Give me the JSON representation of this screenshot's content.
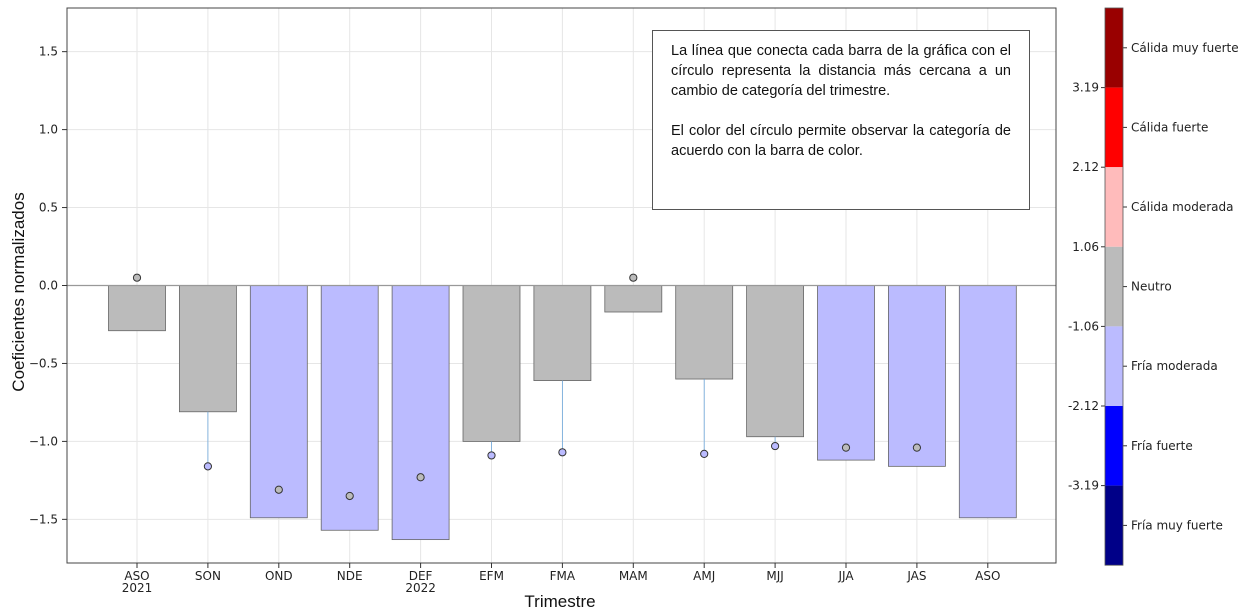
{
  "chart_data": {
    "type": "bar",
    "xlabel": "Trimestre",
    "ylabel": "Coeficientes normalizados",
    "ylim": [
      -1.78,
      1.78
    ],
    "yticks": [
      "1.5",
      "1.0",
      "0.5",
      "0.0",
      "−0.5",
      "−1.0",
      "−1.5"
    ],
    "ytick_values": [
      1.5,
      1.0,
      0.5,
      0.0,
      -0.5,
      -1.0,
      -1.5
    ],
    "grid": true,
    "categories": [
      {
        "label": "ASO",
        "sublabel": "2021"
      },
      {
        "label": "SON",
        "sublabel": ""
      },
      {
        "label": "OND",
        "sublabel": ""
      },
      {
        "label": "NDE",
        "sublabel": ""
      },
      {
        "label": "DEF",
        "sublabel": "2022"
      },
      {
        "label": "EFM",
        "sublabel": ""
      },
      {
        "label": "FMA",
        "sublabel": ""
      },
      {
        "label": "MAM",
        "sublabel": ""
      },
      {
        "label": "AMJ",
        "sublabel": ""
      },
      {
        "label": "MJJ",
        "sublabel": ""
      },
      {
        "label": "JJA",
        "sublabel": ""
      },
      {
        "label": "JAS",
        "sublabel": ""
      },
      {
        "label": "ASO",
        "sublabel": ""
      }
    ],
    "values": [
      -0.29,
      -0.81,
      -1.49,
      -1.57,
      -1.63,
      -1.0,
      -0.61,
      -0.17,
      -0.6,
      -0.97,
      -1.12,
      -1.16,
      -1.49
    ],
    "bar_categories": [
      "Neutro",
      "Neutro",
      "Fría moderada",
      "Fría moderada",
      "Fría moderada",
      "Neutro",
      "Neutro",
      "Neutro",
      "Neutro",
      "Neutro",
      "Fría moderada",
      "Fría moderada",
      "Fría moderada"
    ],
    "circles": [
      0.05,
      -1.16,
      -1.31,
      -1.35,
      -1.23,
      -1.09,
      -1.07,
      0.05,
      -1.08,
      -1.03,
      -1.04,
      -1.04,
      null
    ],
    "circle_categories": [
      "Neutro",
      "Fría moderada",
      "Neutro",
      "Neutro",
      "Neutro",
      "Fría moderada",
      "Fría moderada",
      "Neutro",
      "Fría moderada",
      "Fría moderada",
      "Neutro",
      "Neutro",
      null
    ],
    "annotation": [
      "La línea que conecta cada barra de la gráfica con el círculo representa la distancia más cercana a un cambio de categoría del trimestre.",
      "El color del círculo permite observar la categoría de acuerdo con la barra de color."
    ],
    "colorbar": {
      "segments": [
        {
          "label": "Cálida muy fuerte",
          "color": "#990000"
        },
        {
          "label": "Cálida fuerte",
          "color": "#ff0000"
        },
        {
          "label": "Cálida moderada",
          "color": "#ffbbbb"
        },
        {
          "label": "Neutro",
          "color": "#bbbbbb"
        },
        {
          "label": "Fría moderada",
          "color": "#bbbbff"
        },
        {
          "label": "Fría fuerte",
          "color": "#0000ff"
        },
        {
          "label": "Fría muy fuerte",
          "color": "#000088"
        }
      ],
      "boundaries": [
        "3.19",
        "2.12",
        "1.06",
        "-1.06",
        "-2.12",
        "-3.19"
      ]
    },
    "colors": {
      "neutro": "#bbbbbb",
      "fria_moderada": "#bbbbff",
      "bar_edge": "#666666",
      "stem": "#6fa8dc",
      "zero_line": "#999999",
      "grid": "#e6e6e6",
      "axes": "#444444"
    }
  }
}
